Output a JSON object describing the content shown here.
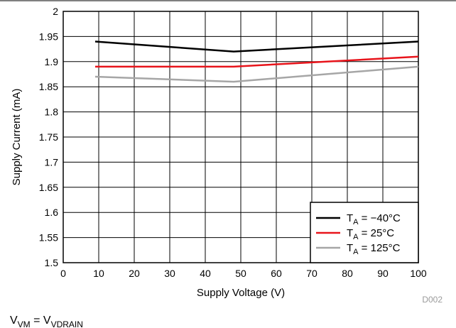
{
  "chart_data": {
    "type": "line",
    "title": "",
    "xlabel": "Supply Voltage (V)",
    "ylabel": "Supply Current (mA)",
    "xlim": [
      0,
      100
    ],
    "ylim": [
      1.5,
      2
    ],
    "x_ticks": [
      "0",
      "10",
      "20",
      "30",
      "40",
      "50",
      "60",
      "70",
      "80",
      "90",
      "100"
    ],
    "y_ticks": [
      "1.5",
      "1.55",
      "1.6",
      "1.65",
      "1.7",
      "1.75",
      "1.8",
      "1.85",
      "1.9",
      "1.95",
      "2"
    ],
    "grid": true,
    "legend_position": "bottom-right",
    "series": [
      {
        "name": "T_A = −40°C",
        "color": "#000000",
        "x": [
          9,
          48,
          100
        ],
        "y": [
          1.94,
          1.92,
          1.94
        ]
      },
      {
        "name": "T_A = 25°C",
        "color": "#e8141b",
        "x": [
          9,
          48,
          100
        ],
        "y": [
          1.89,
          1.89,
          1.91
        ]
      },
      {
        "name": "T_A = 125°C",
        "color": "#a6a6a6",
        "x": [
          9,
          48,
          100
        ],
        "y": [
          1.87,
          1.86,
          1.89
        ]
      }
    ],
    "legend": [
      {
        "sub": "A",
        "value": " = −40°C"
      },
      {
        "sub": "A",
        "value": " = 25°C"
      },
      {
        "sub": "A",
        "value": " = 125°C"
      }
    ],
    "figure_id": "D002",
    "condition": {
      "lhs_sub": "VM",
      "rhs_sub": "VDRAIN"
    }
  }
}
